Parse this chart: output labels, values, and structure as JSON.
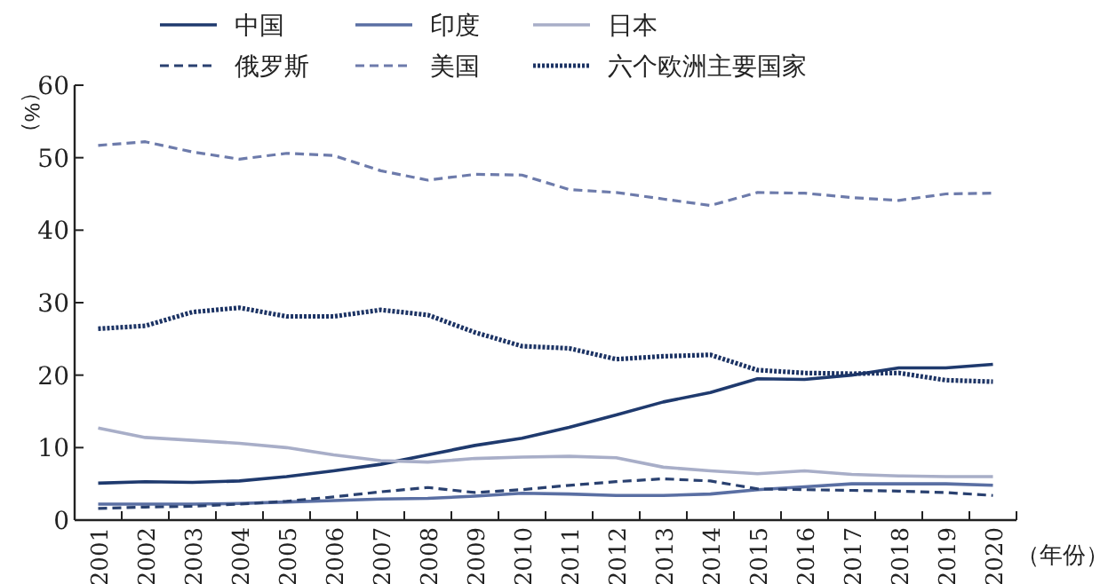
{
  "chart_data": {
    "type": "line",
    "ylabel": "（%）",
    "xlabel": "（年份）",
    "categories": [
      "2001",
      "2002",
      "2003",
      "2004",
      "2005",
      "2006",
      "2007",
      "2008",
      "2009",
      "2010",
      "2011",
      "2012",
      "2013",
      "2014",
      "2015",
      "2016",
      "2017",
      "2018",
      "2019",
      "2020"
    ],
    "ylim": [
      0,
      60
    ],
    "yticks": [
      0,
      10,
      20,
      30,
      40,
      50,
      60
    ],
    "grid": false,
    "legend": "top",
    "marker": "none",
    "series": [
      {
        "name": "中国",
        "color": "#1f3a6e",
        "line_style": "solid",
        "values": [
          5.1,
          5.3,
          5.2,
          5.4,
          6,
          6.8,
          7.7,
          9,
          10.3,
          11.3,
          12.8,
          14.5,
          16.3,
          17.6,
          19.5,
          19.4,
          20,
          21,
          21,
          21.5
        ]
      },
      {
        "name": "印度",
        "color": "#5a6fa3",
        "line_style": "solid",
        "values": [
          2.2,
          2.2,
          2.2,
          2.3,
          2.5,
          2.7,
          2.9,
          3,
          3.3,
          3.7,
          3.6,
          3.4,
          3.4,
          3.6,
          4.2,
          4.6,
          5,
          5,
          5,
          4.8
        ]
      },
      {
        "name": "日本",
        "color": "#a8aec8",
        "line_style": "solid",
        "values": [
          12.7,
          11.4,
          11,
          10.6,
          10,
          9,
          8.2,
          8,
          8.5,
          8.7,
          8.8,
          8.6,
          7.3,
          6.8,
          6.4,
          6.8,
          6.3,
          6.1,
          6,
          6
        ]
      },
      {
        "name": "俄罗斯",
        "color": "#2a4170",
        "line_style": "dashed",
        "values": [
          1.6,
          1.8,
          1.9,
          2.2,
          2.6,
          3.2,
          3.9,
          4.5,
          3.8,
          4.2,
          4.8,
          5.3,
          5.7,
          5.4,
          4.3,
          4.2,
          4.1,
          4,
          3.8,
          3.4
        ]
      },
      {
        "name": "美国",
        "color": "#6d7bab",
        "line_style": "dashed",
        "values": [
          51.7,
          52.2,
          50.8,
          49.8,
          50.6,
          50.3,
          48.2,
          46.9,
          47.7,
          47.6,
          45.6,
          45.2,
          44.3,
          43.4,
          45.2,
          45.1,
          44.5,
          44.1,
          45,
          45.1
        ]
      },
      {
        "name": "六个欧洲主要国家",
        "color": "#1c3364",
        "line_style": "dotted",
        "values": [
          26.4,
          26.8,
          28.7,
          29.3,
          28.1,
          28.1,
          29,
          28.3,
          25.9,
          24,
          23.7,
          22.2,
          22.6,
          22.8,
          20.7,
          20.3,
          20.2,
          20.3,
          19.3,
          19.1
        ]
      }
    ]
  }
}
